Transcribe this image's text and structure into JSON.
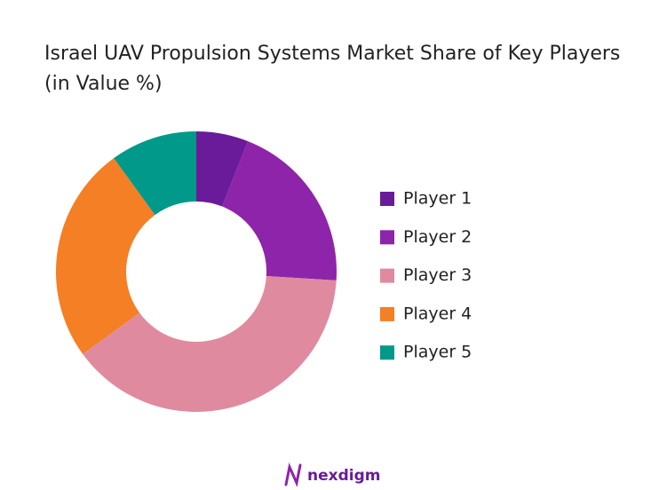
{
  "chart_data": {
    "type": "pie",
    "title": "Israel UAV Propulsion Systems Market Share of Key Players (in Value %)",
    "categories": [
      "Player 1",
      "Player 2",
      "Player 3",
      "Player 4",
      "Player 5"
    ],
    "values": [
      6,
      20,
      39,
      25,
      10
    ],
    "colors": [
      "#6a1b9a",
      "#8e24aa",
      "#e08aa0",
      "#f47f24",
      "#00998a"
    ],
    "donut": true,
    "legend": "right"
  },
  "brand": "nexdigm"
}
